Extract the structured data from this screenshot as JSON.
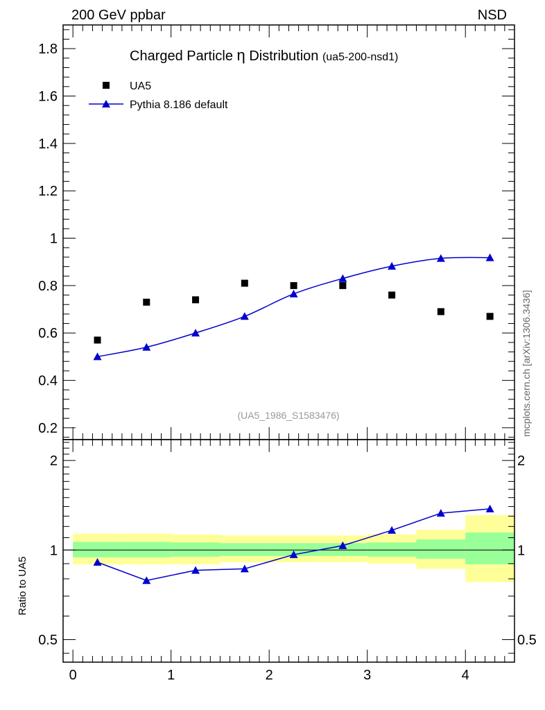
{
  "header": {
    "left_label": "200 GeV ppbar",
    "right_label": "NSD"
  },
  "watermark": "mcplots.cern.ch [arXiv:1306.3436]",
  "chart_data": [
    {
      "type": "scatter",
      "title": "Charged Particle",
      "title_symbol": "η",
      "title_tail": "Distribution",
      "title_id": "(ua5-200-nsd1)",
      "analysis_label": "(UA5_1986_S1583476)",
      "ylim": [
        0.15,
        1.9
      ],
      "yticks": [
        0.2,
        0.4,
        0.6,
        0.8,
        1.0
      ],
      "ytick_labels": [
        "0.2",
        "0.4",
        "0.6",
        "0.8",
        "1"
      ],
      "yticks_extra": [
        1.2,
        1.4,
        1.6,
        1.8
      ],
      "ytick_labels_extra": [
        "1.2",
        "1.4",
        "1.6",
        "1.8"
      ],
      "xlim": [
        -0.1,
        4.5
      ],
      "legend_position": "top-left",
      "series": [
        {
          "name": "UA5",
          "kind": "points",
          "marker": "square",
          "color": "#000000",
          "x": [
            0.25,
            0.75,
            1.25,
            1.75,
            2.25,
            2.75,
            3.25,
            3.75,
            4.25
          ],
          "y": [
            0.57,
            0.73,
            0.74,
            0.81,
            0.8,
            0.8,
            0.76,
            0.69,
            0.67
          ]
        },
        {
          "name": "Pythia 8.186 default",
          "kind": "line",
          "marker": "triangle",
          "color": "#0000cc",
          "x": [
            0.25,
            0.75,
            1.25,
            1.75,
            2.25,
            2.75,
            3.25,
            3.75,
            4.25
          ],
          "y": [
            0.5,
            0.54,
            0.6,
            0.67,
            0.765,
            0.83,
            0.882,
            0.915,
            0.918
          ]
        }
      ]
    },
    {
      "type": "line",
      "ylabel": "Ratio to UA5",
      "log_scale_y": true,
      "ylim": [
        0.42,
        2.35
      ],
      "yticks": [
        0.5,
        1,
        2
      ],
      "ytick_labels": [
        "0.5",
        "1",
        "2"
      ],
      "xlim": [
        -0.1,
        4.5
      ],
      "xticks": [
        0,
        1,
        2,
        3,
        4
      ],
      "xtick_labels": [
        "0",
        "1",
        "2",
        "3",
        "4"
      ],
      "bands": {
        "bins": [
          [
            0.0,
            0.5
          ],
          [
            0.5,
            1.0
          ],
          [
            1.0,
            1.5
          ],
          [
            1.5,
            2.0
          ],
          [
            2.0,
            2.5
          ],
          [
            2.5,
            3.0
          ],
          [
            3.0,
            3.5
          ],
          [
            3.5,
            4.0
          ],
          [
            4.0,
            4.5
          ]
        ],
        "outer_color": "#ffff99",
        "inner_color": "#99ff99",
        "outer_low": [
          0.895,
          0.895,
          0.895,
          0.91,
          0.91,
          0.91,
          0.9,
          0.865,
          0.78
        ],
        "outer_high": [
          1.135,
          1.135,
          1.13,
          1.12,
          1.12,
          1.12,
          1.13,
          1.17,
          1.31
        ],
        "inner_low": [
          0.945,
          0.945,
          0.95,
          0.955,
          0.955,
          0.955,
          0.95,
          0.935,
          0.895
        ],
        "inner_high": [
          1.065,
          1.065,
          1.06,
          1.055,
          1.055,
          1.055,
          1.06,
          1.085,
          1.145
        ]
      },
      "series": [
        {
          "name": "Pythia 8.186 default",
          "marker": "triangle",
          "color": "#0000cc",
          "x": [
            0.25,
            0.75,
            1.25,
            1.75,
            2.25,
            2.75,
            3.25,
            3.75,
            4.25
          ],
          "y": [
            0.91,
            0.79,
            0.855,
            0.865,
            0.965,
            1.035,
            1.165,
            1.33,
            1.375
          ]
        }
      ]
    }
  ]
}
